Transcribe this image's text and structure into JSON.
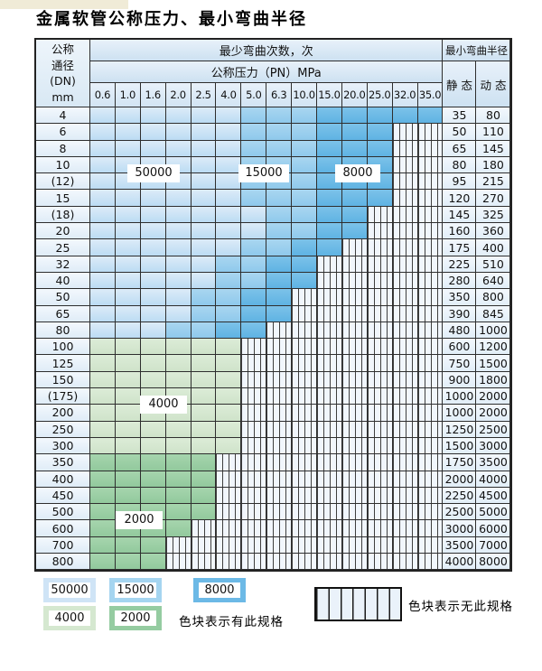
{
  "title": "金属软管公称压力、最小弯曲半径",
  "table": {
    "header": {
      "dn_lines": [
        "公称",
        "通径",
        "(DN)",
        "mm"
      ],
      "bend_cycles_label": "最少弯曲次数，次",
      "bend_radius_label": "最小弯曲半径",
      "pressure_label": "公称压力（PN）MPa",
      "static_label": "静 态",
      "dynamic_label": "动 态",
      "pressures": [
        "0.6",
        "1.0",
        "1.6",
        "2.0",
        "2.5",
        "4.0",
        "5.0",
        "6.3",
        "10.0",
        "15.0",
        "20.0",
        "25.0",
        "32.0",
        "35.0"
      ]
    },
    "rows": [
      {
        "dn": "4",
        "cells": [
          "b1",
          "b1",
          "b1",
          "b1",
          "b1",
          "b1",
          "b2",
          "b2",
          "b2",
          "b3",
          "b3",
          "b3",
          "b3",
          "b3"
        ],
        "static": "35",
        "dynamic": "80"
      },
      {
        "dn": "6",
        "cells": [
          "b1",
          "b1",
          "b1",
          "b1",
          "b1",
          "b1",
          "b2",
          "b2",
          "b2",
          "b3",
          "b3",
          "b3",
          "x",
          "x"
        ],
        "static": "50",
        "dynamic": "110"
      },
      {
        "dn": "8",
        "cells": [
          "b1",
          "b1",
          "b1",
          "b1",
          "b1",
          "b1",
          "b2",
          "b2",
          "b2",
          "b3",
          "b3",
          "b3",
          "x",
          "x"
        ],
        "static": "65",
        "dynamic": "145"
      },
      {
        "dn": "10",
        "cells": [
          "b1",
          "b1",
          "b1",
          "b1",
          "b1",
          "b1",
          "b2",
          "b2",
          "b2",
          "b3",
          "b3",
          "b3",
          "x",
          "x"
        ],
        "static": "80",
        "dynamic": "180"
      },
      {
        "dn": "(12)",
        "cells": [
          "b1",
          "b1",
          "b1",
          "b1",
          "b1",
          "b1",
          "b2",
          "b2",
          "b2",
          "b3",
          "b3",
          "b3",
          "x",
          "x"
        ],
        "static": "95",
        "dynamic": "215"
      },
      {
        "dn": "15",
        "cells": [
          "b1",
          "b1",
          "b1",
          "b1",
          "b1",
          "b1",
          "b2",
          "b2",
          "b2",
          "b3",
          "b3",
          "b3",
          "x",
          "x"
        ],
        "static": "120",
        "dynamic": "270"
      },
      {
        "dn": "(18)",
        "cells": [
          "b1",
          "b1",
          "b1",
          "b1",
          "b1",
          "b1",
          "b1",
          "b2",
          "b2",
          "b3",
          "b3",
          "x",
          "x",
          "x"
        ],
        "static": "145",
        "dynamic": "325"
      },
      {
        "dn": "20",
        "cells": [
          "b1",
          "b1",
          "b1",
          "b1",
          "b1",
          "b1",
          "b1",
          "b2",
          "b2",
          "b3",
          "b3",
          "x",
          "x",
          "x"
        ],
        "static": "160",
        "dynamic": "360"
      },
      {
        "dn": "25",
        "cells": [
          "b1",
          "b1",
          "b1",
          "b1",
          "b1",
          "b1",
          "b2",
          "b2",
          "b3",
          "b3",
          "x",
          "x",
          "x",
          "x"
        ],
        "static": "175",
        "dynamic": "400"
      },
      {
        "dn": "32",
        "cells": [
          "b1",
          "b1",
          "b1",
          "b1",
          "b1",
          "b2",
          "b2",
          "b3",
          "b3",
          "x",
          "x",
          "x",
          "x",
          "x"
        ],
        "static": "225",
        "dynamic": "510"
      },
      {
        "dn": "40",
        "cells": [
          "b1",
          "b1",
          "b1",
          "b1",
          "b1",
          "b2",
          "b2",
          "b3",
          "b3",
          "x",
          "x",
          "x",
          "x",
          "x"
        ],
        "static": "280",
        "dynamic": "640"
      },
      {
        "dn": "50",
        "cells": [
          "b1",
          "b1",
          "b1",
          "b1",
          "b2",
          "b2",
          "b3",
          "b3",
          "x",
          "x",
          "x",
          "x",
          "x",
          "x"
        ],
        "static": "350",
        "dynamic": "800"
      },
      {
        "dn": "65",
        "cells": [
          "b1",
          "b1",
          "b1",
          "b1",
          "b2",
          "b2",
          "b3",
          "b3",
          "x",
          "x",
          "x",
          "x",
          "x",
          "x"
        ],
        "static": "390",
        "dynamic": "845"
      },
      {
        "dn": "80",
        "cells": [
          "b1",
          "b1",
          "b1",
          "b2",
          "b2",
          "b3",
          "b3",
          "x",
          "x",
          "x",
          "x",
          "x",
          "x",
          "x"
        ],
        "static": "480",
        "dynamic": "1000"
      },
      {
        "dn": "100",
        "cells": [
          "g1",
          "g1",
          "g1",
          "g1",
          "g1",
          "g1",
          "x",
          "x",
          "x",
          "x",
          "x",
          "x",
          "x",
          "x"
        ],
        "static": "600",
        "dynamic": "1200"
      },
      {
        "dn": "125",
        "cells": [
          "g1",
          "g1",
          "g1",
          "g1",
          "g1",
          "g1",
          "x",
          "x",
          "x",
          "x",
          "x",
          "x",
          "x",
          "x"
        ],
        "static": "750",
        "dynamic": "1500"
      },
      {
        "dn": "150",
        "cells": [
          "g1",
          "g1",
          "g1",
          "g1",
          "g1",
          "g1",
          "x",
          "x",
          "x",
          "x",
          "x",
          "x",
          "x",
          "x"
        ],
        "static": "900",
        "dynamic": "1800"
      },
      {
        "dn": "(175)",
        "cells": [
          "g1",
          "g1",
          "g1",
          "g1",
          "g1",
          "g1",
          "x",
          "x",
          "x",
          "x",
          "x",
          "x",
          "x",
          "x"
        ],
        "static": "1000",
        "dynamic": "2000"
      },
      {
        "dn": "200",
        "cells": [
          "g1",
          "g1",
          "g1",
          "g1",
          "g1",
          "g1",
          "x",
          "x",
          "x",
          "x",
          "x",
          "x",
          "x",
          "x"
        ],
        "static": "1000",
        "dynamic": "2000"
      },
      {
        "dn": "250",
        "cells": [
          "g1",
          "g1",
          "g1",
          "g1",
          "g1",
          "g1",
          "x",
          "x",
          "x",
          "x",
          "x",
          "x",
          "x",
          "x"
        ],
        "static": "1250",
        "dynamic": "2500"
      },
      {
        "dn": "300",
        "cells": [
          "g1",
          "g1",
          "g1",
          "g1",
          "g1",
          "g1",
          "x",
          "x",
          "x",
          "x",
          "x",
          "x",
          "x",
          "x"
        ],
        "static": "1500",
        "dynamic": "3000"
      },
      {
        "dn": "350",
        "cells": [
          "g2",
          "g2",
          "g2",
          "g2",
          "g2",
          "x",
          "x",
          "x",
          "x",
          "x",
          "x",
          "x",
          "x",
          "x"
        ],
        "static": "1750",
        "dynamic": "3500"
      },
      {
        "dn": "400",
        "cells": [
          "g2",
          "g2",
          "g2",
          "g2",
          "g2",
          "x",
          "x",
          "x",
          "x",
          "x",
          "x",
          "x",
          "x",
          "x"
        ],
        "static": "2000",
        "dynamic": "4000"
      },
      {
        "dn": "450",
        "cells": [
          "g2",
          "g2",
          "g2",
          "g2",
          "g2",
          "x",
          "x",
          "x",
          "x",
          "x",
          "x",
          "x",
          "x",
          "x"
        ],
        "static": "2250",
        "dynamic": "4500"
      },
      {
        "dn": "500",
        "cells": [
          "g2",
          "g2",
          "g2",
          "g2",
          "g2",
          "x",
          "x",
          "x",
          "x",
          "x",
          "x",
          "x",
          "x",
          "x"
        ],
        "static": "2500",
        "dynamic": "5000"
      },
      {
        "dn": "600",
        "cells": [
          "g2",
          "g2",
          "g2",
          "g2",
          "x",
          "x",
          "x",
          "x",
          "x",
          "x",
          "x",
          "x",
          "x",
          "x"
        ],
        "static": "3000",
        "dynamic": "6000"
      },
      {
        "dn": "700",
        "cells": [
          "g2",
          "g2",
          "g2",
          "x",
          "x",
          "x",
          "x",
          "x",
          "x",
          "x",
          "x",
          "x",
          "x",
          "x"
        ],
        "static": "3500",
        "dynamic": "7000"
      },
      {
        "dn": "800",
        "cells": [
          "g2",
          "g2",
          "g2",
          "x",
          "x",
          "x",
          "x",
          "x",
          "x",
          "x",
          "x",
          "x",
          "x",
          "x"
        ],
        "static": "4000",
        "dynamic": "8000"
      }
    ]
  },
  "overlays": {
    "cycles_50000": "50000",
    "cycles_15000": "15000",
    "cycles_8000": "8000",
    "cycles_4000": "4000",
    "cycles_2000": "2000"
  },
  "legend": {
    "items": [
      {
        "label": "50000",
        "color": "#cfe4f6"
      },
      {
        "label": "15000",
        "color": "#a5d5f0"
      },
      {
        "label": "8000",
        "color": "#6cb9e6"
      },
      {
        "label": "4000",
        "color": "#d5e8d0"
      },
      {
        "label": "2000",
        "color": "#95cca1"
      }
    ],
    "has_spec_text": "色块表示有此规格",
    "no_spec_text": "色块表示无此规格"
  },
  "colors": {
    "blue_50000": "#bcdcf3",
    "blue_15000": "#8fc9ec",
    "blue_8000": "#5fb3e3",
    "green_4000": "#cfe3ca",
    "green_2000": "#92c99d",
    "hatch_bg": "#f1f6fc",
    "header_bg": "#cde1f1",
    "border": "#2e2e2e"
  }
}
